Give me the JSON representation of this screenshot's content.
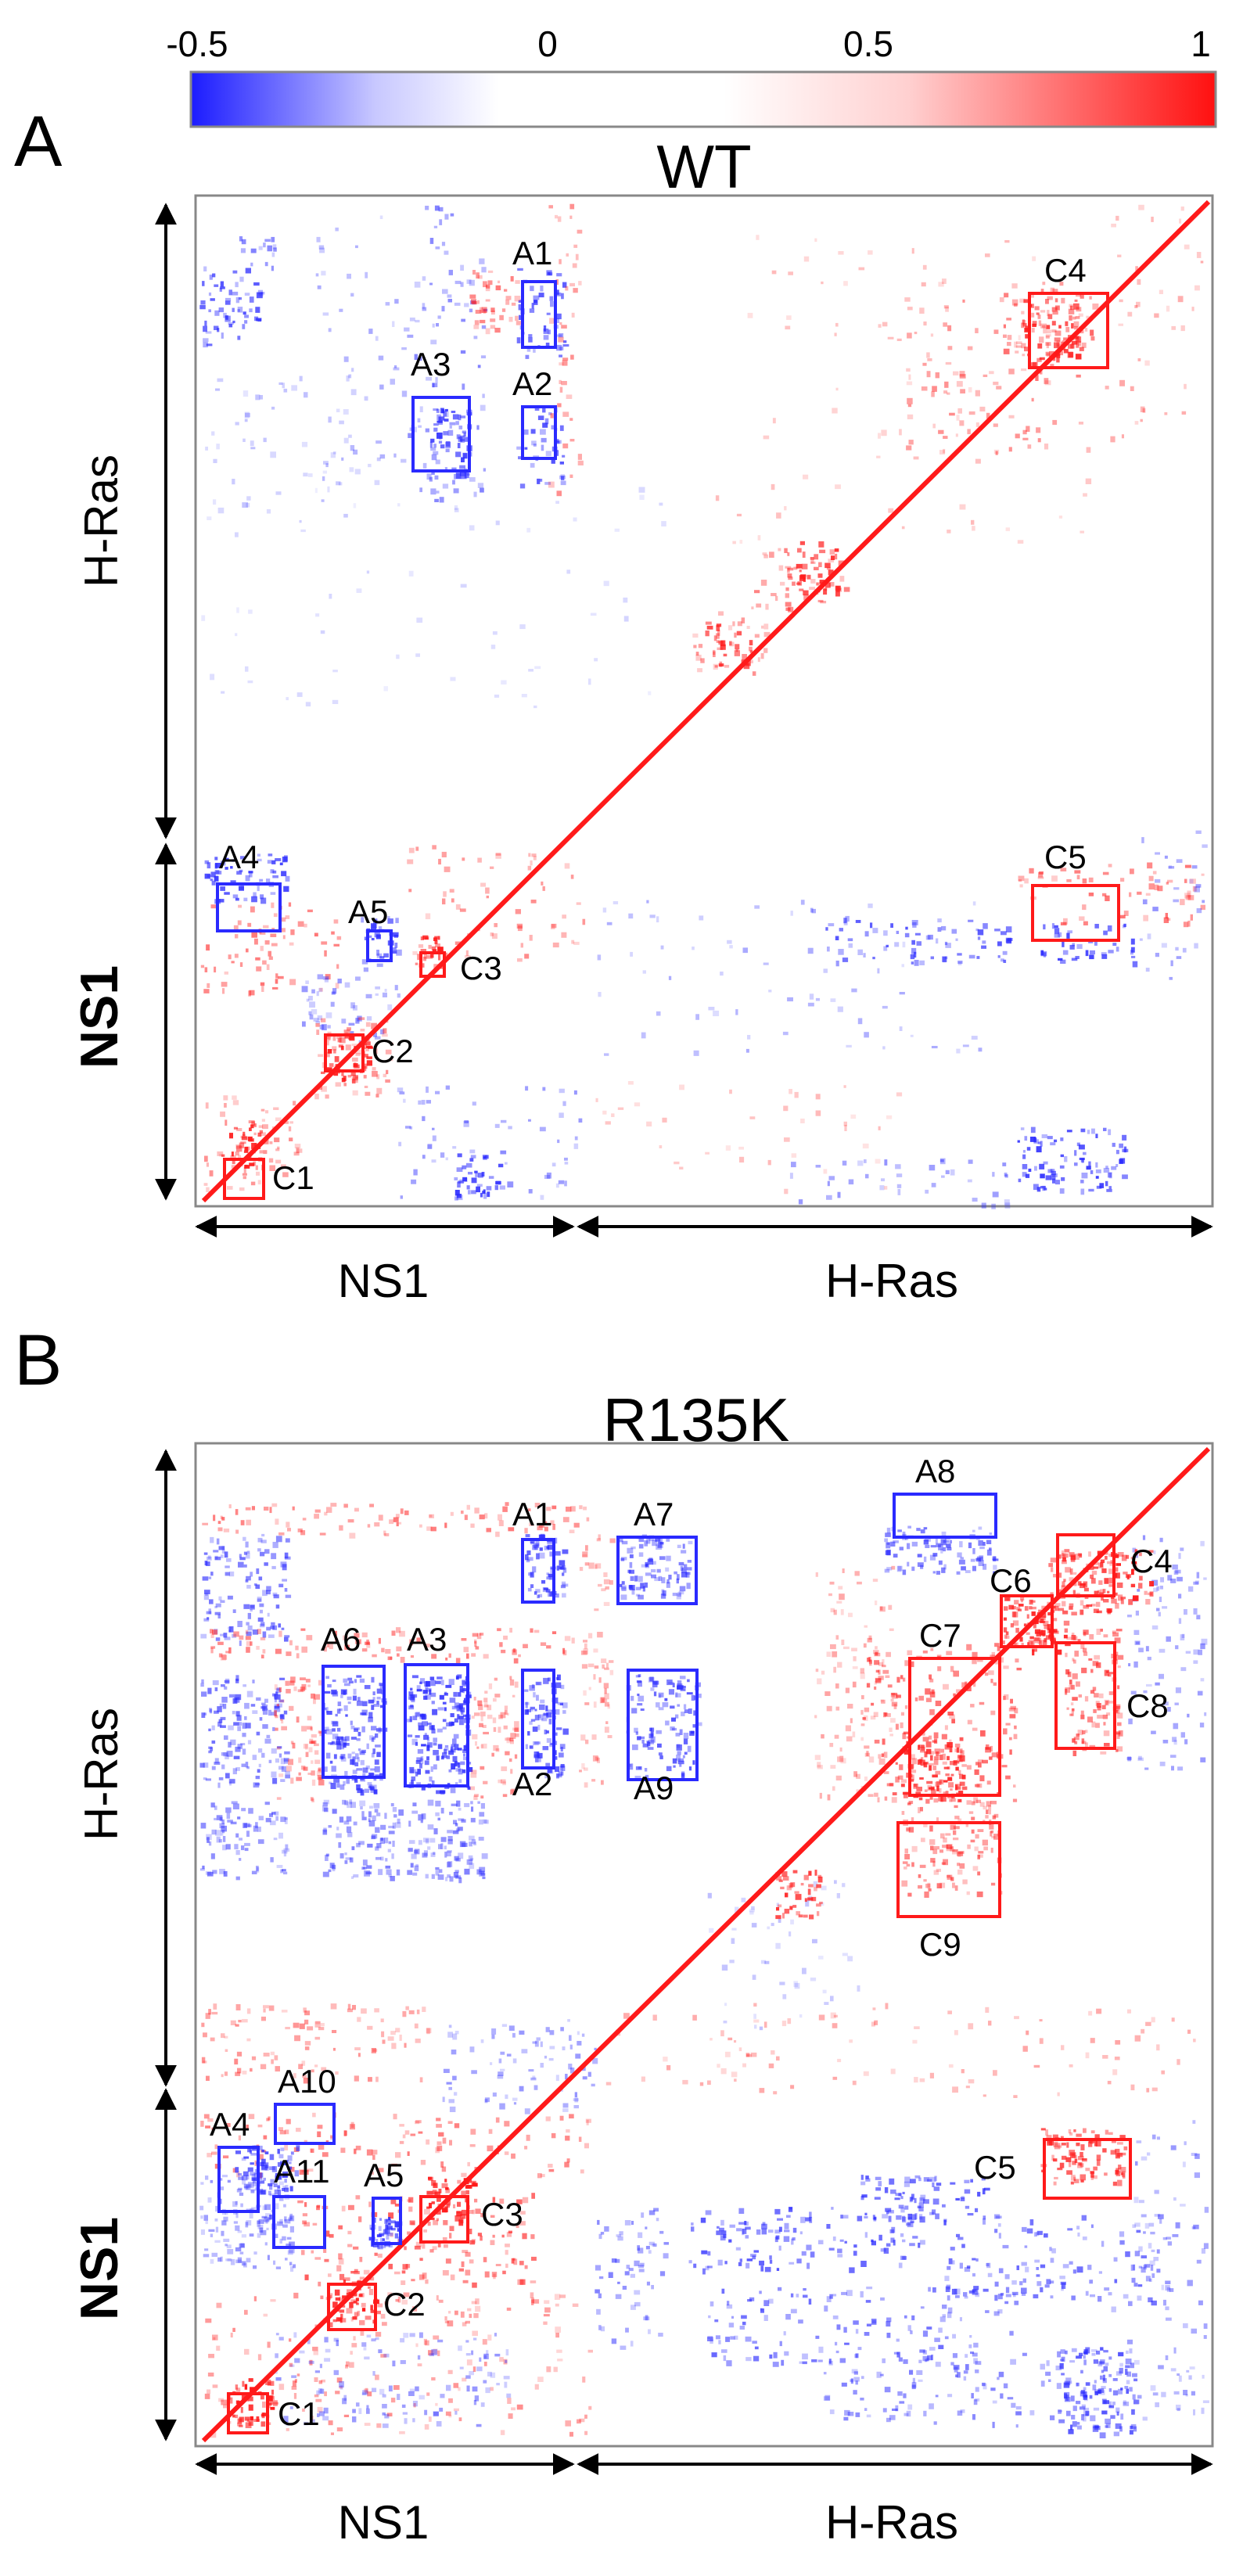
{
  "chart_data": [
    {
      "type": "heatmap",
      "panel": "A",
      "title": "WT",
      "colorbar": {
        "tick_labels": [
          "-0.5",
          "0",
          "0.5",
          "1"
        ],
        "tick_values": [
          -0.5,
          0,
          0.5,
          1
        ],
        "range": [
          -0.5,
          1
        ],
        "colors": {
          "negative": "#1b1bff",
          "zero": "#ffffff",
          "positive": "#ff1010"
        }
      },
      "ylabel_top": "H-Ras",
      "ylabel_bottom": "NS1",
      "xlabel_left": "NS1",
      "xlabel_right": "H-Ras",
      "anticorrelated_regions": [
        "A1",
        "A2",
        "A3",
        "A4",
        "A5"
      ],
      "correlated_regions": [
        "C1",
        "C2",
        "C3",
        "C4",
        "C5"
      ]
    },
    {
      "type": "heatmap",
      "panel": "B",
      "title": "R135K",
      "ylabel_top": "H-Ras",
      "ylabel_bottom": "NS1",
      "xlabel_left": "NS1",
      "xlabel_right": "H-Ras",
      "anticorrelated_regions": [
        "A1",
        "A2",
        "A3",
        "A4",
        "A5",
        "A6",
        "A7",
        "A8",
        "A9",
        "A10",
        "A11"
      ],
      "correlated_regions": [
        "C1",
        "C2",
        "C3",
        "C4",
        "C5",
        "C6",
        "C7",
        "C8",
        "C9"
      ]
    }
  ]
}
